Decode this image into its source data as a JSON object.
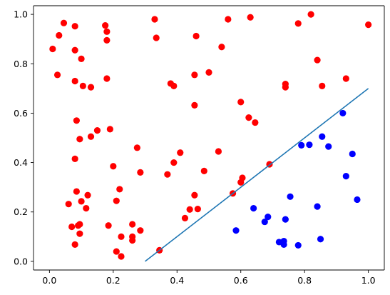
{
  "chart_data": {
    "type": "scatter",
    "title": "",
    "xlabel": "",
    "ylabel": "",
    "xlim": [
      -0.05,
      1.05
    ],
    "ylim": [
      -0.035,
      1.035
    ],
    "grid": false,
    "xticks": [
      0.0,
      0.2,
      0.4,
      0.6,
      0.8,
      1.0
    ],
    "xtick_labels": [
      "0.0",
      "0.2",
      "0.4",
      "0.6",
      "0.8",
      "1.0"
    ],
    "yticks": [
      0.0,
      0.2,
      0.4,
      0.6,
      0.8,
      1.0
    ],
    "ytick_labels": [
      "0.0",
      "0.2",
      "0.4",
      "0.6",
      "0.8",
      "1.0"
    ],
    "colors": {
      "class_a": "#ff0000",
      "class_b": "#0000ff",
      "line": "#1f77b4",
      "axes": "#000000"
    },
    "line": {
      "x": [
        0.3,
        1.0
      ],
      "y": [
        0.0,
        0.7
      ]
    },
    "series": [
      {
        "color": "#ff0000",
        "points": [
          [
            0.01,
            0.86
          ],
          [
            0.03,
            0.915
          ],
          [
            0.045,
            0.965
          ],
          [
            0.025,
            0.755
          ],
          [
            0.08,
            0.952
          ],
          [
            0.08,
            0.855
          ],
          [
            0.1,
            0.82
          ],
          [
            0.08,
            0.73
          ],
          [
            0.105,
            0.71
          ],
          [
            0.13,
            0.705
          ],
          [
            0.175,
            0.955
          ],
          [
            0.18,
            0.93
          ],
          [
            0.18,
            0.895
          ],
          [
            0.18,
            0.74
          ],
          [
            0.085,
            0.57
          ],
          [
            0.095,
            0.495
          ],
          [
            0.13,
            0.505
          ],
          [
            0.15,
            0.53
          ],
          [
            0.19,
            0.535
          ],
          [
            0.08,
            0.415
          ],
          [
            0.2,
            0.385
          ],
          [
            0.06,
            0.232
          ],
          [
            0.07,
            0.14
          ],
          [
            0.09,
            0.145
          ],
          [
            0.095,
            0.15
          ],
          [
            0.095,
            0.112
          ],
          [
            0.08,
            0.068
          ],
          [
            0.085,
            0.283
          ],
          [
            0.1,
            0.243
          ],
          [
            0.115,
            0.215
          ],
          [
            0.12,
            0.268
          ],
          [
            0.185,
            0.145
          ],
          [
            0.21,
            0.245
          ],
          [
            0.22,
            0.292
          ],
          [
            0.21,
            0.04
          ],
          [
            0.225,
            0.1
          ],
          [
            0.225,
            0.02
          ],
          [
            0.26,
            0.15
          ],
          [
            0.26,
            0.1
          ],
          [
            0.26,
            0.085
          ],
          [
            0.275,
            0.46
          ],
          [
            0.285,
            0.36
          ],
          [
            0.285,
            0.125
          ],
          [
            0.33,
            0.98
          ],
          [
            0.335,
            0.905
          ],
          [
            0.345,
            0.045
          ],
          [
            0.37,
            0.352
          ],
          [
            0.38,
            0.72
          ],
          [
            0.39,
            0.71
          ],
          [
            0.39,
            0.4
          ],
          [
            0.41,
            0.44
          ],
          [
            0.425,
            0.175
          ],
          [
            0.44,
            0.21
          ],
          [
            0.455,
            0.268
          ],
          [
            0.455,
            0.755
          ],
          [
            0.455,
            0.632
          ],
          [
            0.46,
            0.912
          ],
          [
            0.465,
            0.212
          ],
          [
            0.485,
            0.366
          ],
          [
            0.5,
            0.765
          ],
          [
            0.53,
            0.445
          ],
          [
            0.54,
            0.868
          ],
          [
            0.56,
            0.98
          ],
          [
            0.575,
            0.275
          ],
          [
            0.6,
            0.32
          ],
          [
            0.605,
            0.338
          ],
          [
            0.6,
            0.645
          ],
          [
            0.625,
            0.582
          ],
          [
            0.63,
            0.988
          ],
          [
            0.645,
            0.562
          ],
          [
            0.69,
            0.393
          ],
          [
            0.74,
            0.718
          ],
          [
            0.74,
            0.705
          ],
          [
            0.78,
            0.963
          ],
          [
            0.82,
            1.0
          ],
          [
            0.84,
            0.815
          ],
          [
            0.855,
            0.71
          ],
          [
            0.93,
            0.74
          ],
          [
            1.0,
            0.958
          ]
        ]
      },
      {
        "color": "#0000ff",
        "points": [
          [
            0.585,
            0.125
          ],
          [
            0.64,
            0.215
          ],
          [
            0.675,
            0.16
          ],
          [
            0.685,
            0.18
          ],
          [
            0.72,
            0.078
          ],
          [
            0.735,
            0.082
          ],
          [
            0.735,
            0.068
          ],
          [
            0.74,
            0.17
          ],
          [
            0.755,
            0.262
          ],
          [
            0.78,
            0.065
          ],
          [
            0.79,
            0.47
          ],
          [
            0.815,
            0.472
          ],
          [
            0.84,
            0.222
          ],
          [
            0.85,
            0.09
          ],
          [
            0.855,
            0.505
          ],
          [
            0.875,
            0.465
          ],
          [
            0.92,
            0.6
          ],
          [
            0.93,
            0.345
          ],
          [
            0.95,
            0.435
          ],
          [
            0.965,
            0.25
          ]
        ]
      }
    ]
  }
}
